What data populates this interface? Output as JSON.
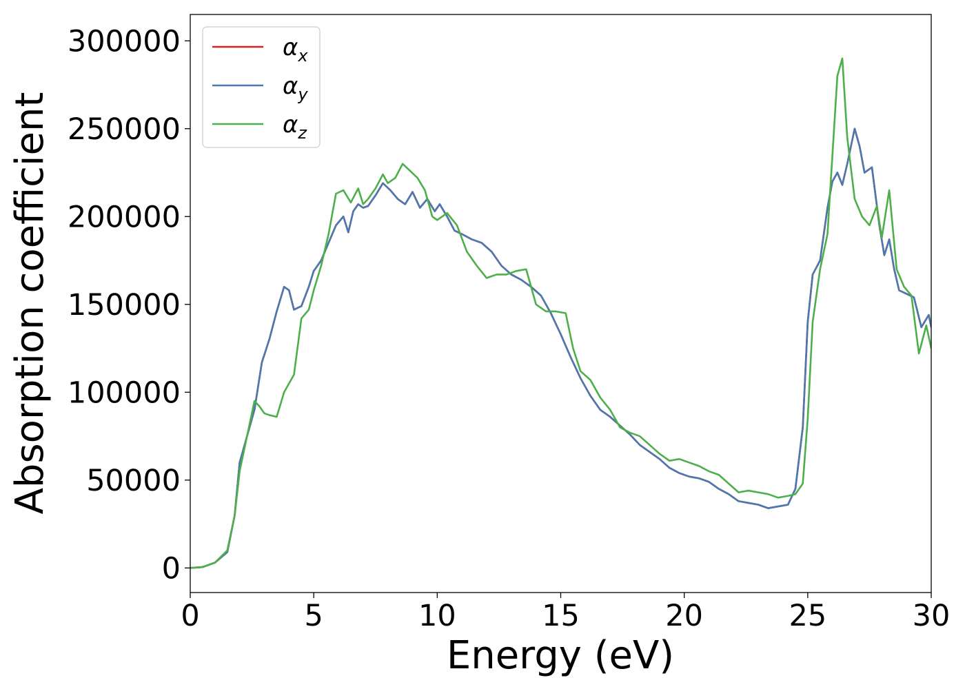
{
  "chart_data": {
    "type": "line",
    "title": "",
    "xlabel": "Energy (eV)",
    "ylabel": "Absorption coefficient",
    "xlim": [
      0,
      30
    ],
    "ylim": [
      -14000,
      315000
    ],
    "xticks": [
      0,
      5,
      10,
      15,
      20,
      25,
      30
    ],
    "xtick_labels": [
      "0",
      "5",
      "10",
      "15",
      "20",
      "25",
      "30"
    ],
    "yticks": [
      0,
      50000,
      100000,
      150000,
      200000,
      250000,
      300000
    ],
    "ytick_labels": [
      "0",
      "50000",
      "100000",
      "150000",
      "200000",
      "250000",
      "300000"
    ],
    "grid": false,
    "legend_position": "top-left",
    "series": [
      {
        "name": "αx",
        "legend_main": "α",
        "legend_sub": "x",
        "color": "#e41a1c",
        "x": [
          0,
          0.5,
          1,
          1.5,
          1.8,
          2,
          2.3,
          2.6,
          2.9,
          3.2,
          3.5,
          3.8,
          4,
          4.2,
          4.5,
          4.8,
          5,
          5.3,
          5.6,
          5.9,
          6.2,
          6.4,
          6.6,
          6.8,
          7,
          7.2,
          7.5,
          7.8,
          8.1,
          8.4,
          8.7,
          9,
          9.3,
          9.6,
          9.9,
          10.1,
          10.4,
          10.7,
          11,
          11.4,
          11.8,
          12.2,
          12.6,
          13,
          13.4,
          13.8,
          14.2,
          14.6,
          15,
          15.4,
          15.8,
          16.2,
          16.6,
          17,
          17.4,
          17.8,
          18.2,
          18.6,
          19,
          19.4,
          19.8,
          20.2,
          20.6,
          21,
          21.4,
          21.8,
          22.2,
          22.6,
          23,
          23.4,
          23.8,
          24.2,
          24.5,
          24.8,
          25,
          25.2,
          25.5,
          25.8,
          26,
          26.2,
          26.4,
          26.6,
          26.9,
          27.1,
          27.3,
          27.6,
          27.9,
          28.1,
          28.3,
          28.5,
          28.7,
          29,
          29.3,
          29.6,
          29.9,
          30
        ],
        "y": [
          0,
          500,
          3000,
          9000,
          30000,
          60000,
          75000,
          90000,
          117000,
          130000,
          146000,
          160000,
          158000,
          147000,
          149000,
          160000,
          169000,
          175000,
          185000,
          195000,
          200000,
          191000,
          203000,
          207000,
          205000,
          206000,
          212000,
          219000,
          215000,
          210000,
          207000,
          214000,
          205000,
          210000,
          203000,
          207000,
          200000,
          192000,
          190000,
          187000,
          185000,
          180000,
          172000,
          167000,
          164000,
          160000,
          155000,
          145000,
          133000,
          120000,
          108000,
          98000,
          90000,
          86000,
          81000,
          76000,
          70000,
          66000,
          62000,
          57000,
          54000,
          52000,
          51000,
          49000,
          45000,
          42000,
          38000,
          37000,
          36000,
          34000,
          35000,
          36000,
          45000,
          80000,
          140000,
          167000,
          175000,
          205000,
          220000,
          225000,
          218000,
          230000,
          250000,
          240000,
          225000,
          228000,
          195000,
          178000,
          187000,
          170000,
          158000,
          156000,
          154000,
          137000,
          144000,
          137000
        ]
      },
      {
        "name": "αy",
        "legend_main": "α",
        "legend_sub": "y",
        "color": "#4a79b0",
        "x": [
          0,
          0.5,
          1,
          1.5,
          1.8,
          2,
          2.3,
          2.6,
          2.9,
          3.2,
          3.5,
          3.8,
          4,
          4.2,
          4.5,
          4.8,
          5,
          5.3,
          5.6,
          5.9,
          6.2,
          6.4,
          6.6,
          6.8,
          7,
          7.2,
          7.5,
          7.8,
          8.1,
          8.4,
          8.7,
          9,
          9.3,
          9.6,
          9.9,
          10.1,
          10.4,
          10.7,
          11,
          11.4,
          11.8,
          12.2,
          12.6,
          13,
          13.4,
          13.8,
          14.2,
          14.6,
          15,
          15.4,
          15.8,
          16.2,
          16.6,
          17,
          17.4,
          17.8,
          18.2,
          18.6,
          19,
          19.4,
          19.8,
          20.2,
          20.6,
          21,
          21.4,
          21.8,
          22.2,
          22.6,
          23,
          23.4,
          23.8,
          24.2,
          24.5,
          24.8,
          25,
          25.2,
          25.5,
          25.8,
          26,
          26.2,
          26.4,
          26.6,
          26.9,
          27.1,
          27.3,
          27.6,
          27.9,
          28.1,
          28.3,
          28.5,
          28.7,
          29,
          29.3,
          29.6,
          29.9,
          30
        ],
        "y": [
          0,
          500,
          3000,
          9000,
          30000,
          60000,
          75000,
          90000,
          117000,
          130000,
          146000,
          160000,
          158000,
          147000,
          149000,
          160000,
          169000,
          175000,
          185000,
          195000,
          200000,
          191000,
          203000,
          207000,
          205000,
          206000,
          212000,
          219000,
          215000,
          210000,
          207000,
          214000,
          205000,
          210000,
          203000,
          207000,
          200000,
          192000,
          190000,
          187000,
          185000,
          180000,
          172000,
          167000,
          164000,
          160000,
          155000,
          145000,
          133000,
          120000,
          108000,
          98000,
          90000,
          86000,
          81000,
          76000,
          70000,
          66000,
          62000,
          57000,
          54000,
          52000,
          51000,
          49000,
          45000,
          42000,
          38000,
          37000,
          36000,
          34000,
          35000,
          36000,
          45000,
          80000,
          140000,
          167000,
          175000,
          205000,
          220000,
          225000,
          218000,
          230000,
          250000,
          240000,
          225000,
          228000,
          195000,
          178000,
          187000,
          170000,
          158000,
          156000,
          154000,
          137000,
          144000,
          137000
        ]
      },
      {
        "name": "αz",
        "legend_main": "α",
        "legend_sub": "z",
        "color": "#4daf4a",
        "x": [
          0,
          0.5,
          1,
          1.5,
          1.8,
          2,
          2.3,
          2.6,
          2.8,
          3,
          3.2,
          3.5,
          3.8,
          4.2,
          4.5,
          4.8,
          5,
          5.3,
          5.6,
          5.9,
          6.2,
          6.5,
          6.8,
          7,
          7.2,
          7.5,
          7.8,
          8,
          8.3,
          8.6,
          8.9,
          9.2,
          9.5,
          9.8,
          10,
          10.4,
          10.8,
          11.2,
          11.6,
          12,
          12.4,
          12.8,
          13.2,
          13.6,
          14,
          14.4,
          14.8,
          15.2,
          15.5,
          15.8,
          16.2,
          16.6,
          17,
          17.4,
          17.8,
          18.2,
          18.6,
          19,
          19.4,
          19.8,
          20.2,
          20.6,
          21,
          21.4,
          21.8,
          22.2,
          22.6,
          23,
          23.4,
          23.8,
          24.2,
          24.5,
          24.8,
          25,
          25.2,
          25.5,
          25.8,
          26,
          26.2,
          26.4,
          26.6,
          26.9,
          27.2,
          27.5,
          27.8,
          28,
          28.3,
          28.6,
          28.9,
          29.2,
          29.5,
          29.8,
          30
        ],
        "y": [
          0,
          500,
          3000,
          10000,
          30000,
          55000,
          75000,
          95000,
          92000,
          88000,
          87000,
          86000,
          100000,
          110000,
          142000,
          147000,
          158000,
          172000,
          190000,
          213000,
          215000,
          208000,
          216000,
          207000,
          210000,
          216000,
          224000,
          219000,
          222000,
          230000,
          226000,
          222000,
          215000,
          200000,
          198000,
          202000,
          195000,
          180000,
          172000,
          165000,
          167000,
          167000,
          169000,
          170000,
          150000,
          146000,
          146000,
          145000,
          125000,
          112000,
          107000,
          97000,
          90000,
          80000,
          77000,
          75000,
          70000,
          65000,
          61000,
          62000,
          60000,
          58000,
          55000,
          53000,
          48000,
          43000,
          44000,
          43000,
          42000,
          40000,
          41000,
          42000,
          48000,
          85000,
          140000,
          170000,
          190000,
          235000,
          280000,
          290000,
          245000,
          210000,
          200000,
          195000,
          206000,
          188000,
          215000,
          170000,
          160000,
          155000,
          122000,
          138000,
          125000
        ]
      }
    ]
  }
}
